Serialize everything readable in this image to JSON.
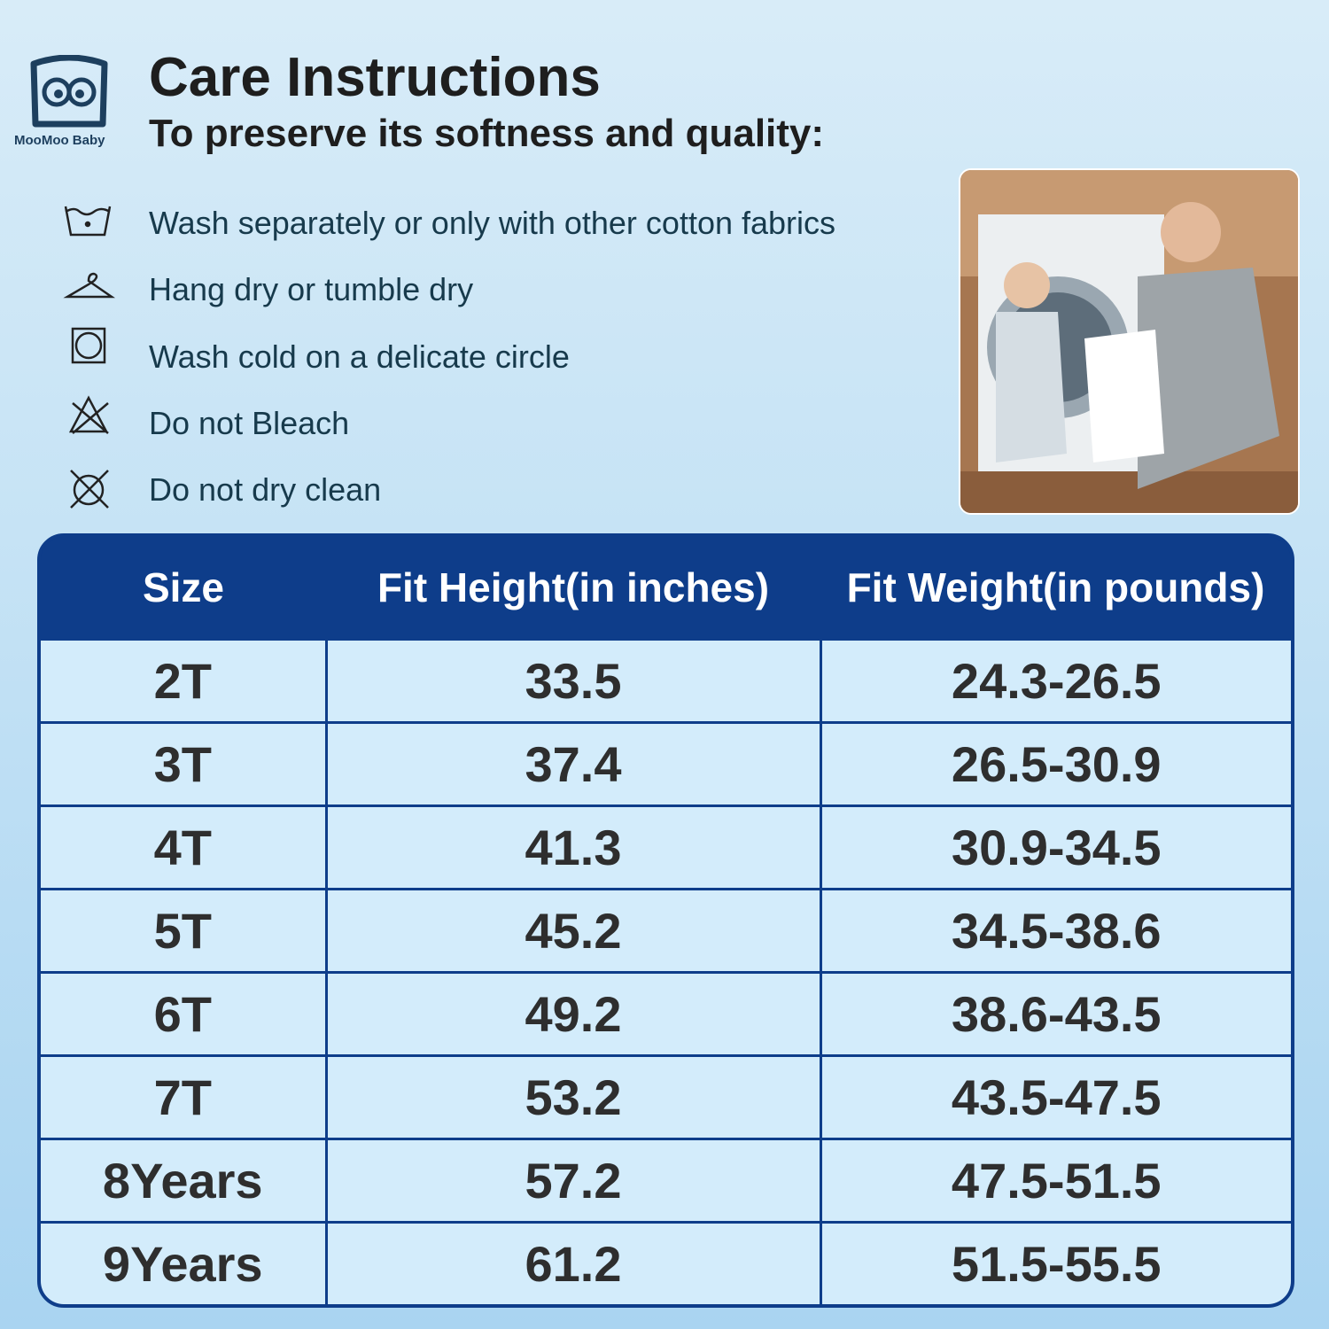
{
  "logo": "MooMoo Baby",
  "header": {
    "title": "Care Instructions",
    "subtitle": "To preserve its softness and quality:"
  },
  "care": [
    "Wash separately or only with other cotton fabrics",
    "Hang dry or tumble dry",
    "Wash cold on a delicate circle",
    "Do not Bleach",
    "Do not dry clean"
  ],
  "table": {
    "columns": [
      "Size",
      "Fit Height(in inches)",
      "Fit Weight(in pounds)"
    ],
    "rows": [
      [
        "2T",
        "33.5",
        "24.3-26.5"
      ],
      [
        "3T",
        "37.4",
        "26.5-30.9"
      ],
      [
        "4T",
        "41.3",
        "30.9-34.5"
      ],
      [
        "5T",
        "45.2",
        "34.5-38.6"
      ],
      [
        "6T",
        "49.2",
        "38.6-43.5"
      ],
      [
        "7T",
        "53.2",
        "43.5-47.5"
      ],
      [
        "8Years",
        "57.2",
        "47.5-51.5"
      ],
      [
        "9Years",
        "61.2",
        "51.5-55.5"
      ]
    ]
  }
}
